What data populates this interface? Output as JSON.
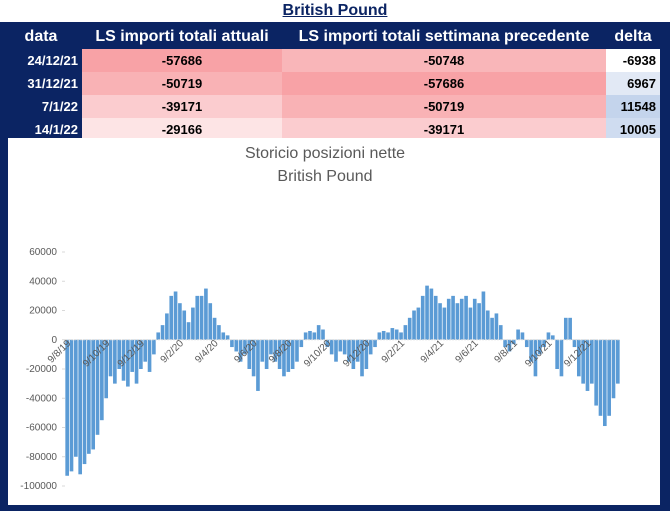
{
  "table": {
    "title": "British Pound",
    "header": [
      "data",
      "LS importi totali  attuali",
      "LS importi totali settimana precedente",
      "delta"
    ],
    "rows": [
      [
        "24/12/21",
        -57686,
        -50748,
        -6938
      ],
      [
        "31/12/21",
        -50719,
        -57686,
        6967
      ],
      [
        "7/1/22",
        -39171,
        -50719,
        11548
      ],
      [
        "14/1/22",
        -29166,
        -39171,
        10005
      ]
    ]
  },
  "chart_data": {
    "type": "bar",
    "title": "Storicio posizioni nette",
    "subtitle": "British Pound",
    "color": "#5b9bd5",
    "ylim": [
      -100000,
      60000
    ],
    "yticks": [
      -100000,
      -80000,
      -60000,
      -40000,
      -20000,
      0,
      20000,
      40000,
      60000
    ],
    "categories": [
      "9/8/19",
      null,
      null,
      null,
      null,
      null,
      null,
      null,
      null,
      "9/10/19",
      null,
      null,
      null,
      null,
      null,
      null,
      null,
      "9/12/19",
      null,
      null,
      null,
      null,
      null,
      null,
      null,
      null,
      "9/2/20",
      null,
      null,
      null,
      null,
      null,
      null,
      null,
      "9/4/20",
      null,
      null,
      null,
      null,
      null,
      null,
      null,
      null,
      "9/6/20",
      null,
      null,
      null,
      null,
      null,
      null,
      null,
      "9/8/20",
      null,
      null,
      null,
      null,
      null,
      null,
      null,
      null,
      "9/10/20",
      null,
      null,
      null,
      null,
      null,
      null,
      null,
      null,
      "9/12/20",
      null,
      null,
      null,
      null,
      null,
      null,
      null,
      "9/2/21",
      null,
      null,
      null,
      null,
      null,
      null,
      null,
      null,
      "9/4/21",
      null,
      null,
      null,
      null,
      null,
      null,
      null,
      "9/6/21",
      null,
      null,
      null,
      null,
      null,
      null,
      null,
      null,
      "9/8/21",
      null,
      null,
      null,
      null,
      null,
      null,
      null,
      "9/10/21",
      null,
      null,
      null,
      null,
      null,
      null,
      null,
      null,
      "9/12/21",
      null,
      null,
      null,
      null,
      null,
      null,
      null
    ],
    "values": [
      -93000,
      -90000,
      -80000,
      -92000,
      -85000,
      -78000,
      -75000,
      -65000,
      -55000,
      -40000,
      -25000,
      -30000,
      -20000,
      -28000,
      -32000,
      -22000,
      -30000,
      -20000,
      -15000,
      -22000,
      -10000,
      5000,
      10000,
      18000,
      30000,
      33000,
      25000,
      20000,
      12000,
      22000,
      30000,
      30000,
      35000,
      25000,
      15000,
      10000,
      5000,
      3000,
      -5000,
      -8000,
      -15000,
      -10000,
      -20000,
      -25000,
      -35000,
      -15000,
      -20000,
      -10000,
      -15000,
      -20000,
      -25000,
      -22000,
      -20000,
      -15000,
      -5000,
      5000,
      6000,
      5000,
      10000,
      7000,
      -5000,
      -10000,
      -15000,
      -8000,
      -10000,
      -15000,
      -20000,
      -15000,
      -25000,
      -20000,
      -10000,
      -5000,
      5000,
      6000,
      5000,
      8000,
      7000,
      5000,
      10000,
      15000,
      20000,
      22000,
      30000,
      37000,
      35000,
      30000,
      25000,
      22000,
      28000,
      30000,
      25000,
      28000,
      30000,
      22000,
      28000,
      25000,
      33000,
      20000,
      15000,
      18000,
      10000,
      -5000,
      -8000,
      -3000,
      7000,
      5000,
      -5000,
      -15000,
      -25000,
      -10000,
      -5000,
      5000,
      3000,
      -20000,
      -25000,
      15000,
      15000,
      -5000,
      -25000,
      -30000,
      -35000,
      -30000,
      -45000,
      -52000,
      -59000,
      -52000,
      -40000,
      -30000
    ]
  }
}
